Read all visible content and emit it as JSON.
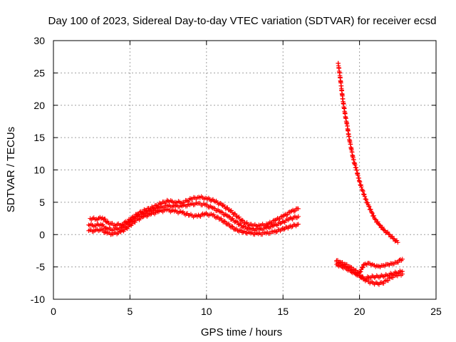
{
  "chart_data": {
    "type": "scatter",
    "title": "Day 100 of 2023, Sidereal Day-to-day VTEC variation (SDTVAR) for receiver ecsd",
    "xlabel": "GPS time / hours",
    "ylabel": "SDTVAR / TECUs",
    "xlim": [
      0,
      25
    ],
    "ylim": [
      -10,
      30
    ],
    "xticks": [
      0,
      5,
      10,
      15,
      20,
      25
    ],
    "yticks": [
      -10,
      -5,
      0,
      5,
      10,
      15,
      20,
      25,
      30
    ],
    "grid": true,
    "marker": "+",
    "color": "#ff0000",
    "series": [
      {
        "name": "arc-1-upper",
        "x": [
          2.4,
          2.8,
          3.2,
          3.6,
          4.0,
          4.5,
          5.0,
          5.5,
          6.0,
          6.5,
          7.0,
          7.5,
          8.0,
          8.5,
          9.0,
          9.5,
          10.0,
          10.5,
          11.0,
          11.5,
          12.0,
          12.5,
          13.0,
          13.5,
          14.0,
          14.5,
          15.0,
          15.5,
          16.0
        ],
        "y": [
          2.5,
          2.4,
          2.6,
          1.8,
          1.5,
          1.6,
          2.3,
          3.2,
          3.8,
          4.2,
          4.8,
          5.2,
          5.0,
          5.0,
          5.5,
          5.8,
          5.6,
          5.2,
          4.6,
          3.8,
          2.8,
          1.8,
          1.4,
          1.4,
          1.6,
          2.2,
          2.8,
          3.5,
          4.0
        ]
      },
      {
        "name": "arc-1-middle",
        "x": [
          2.3,
          2.7,
          3.1,
          3.5,
          3.9,
          4.4,
          4.9,
          5.4,
          5.9,
          6.4,
          6.9,
          7.4,
          7.9,
          8.4,
          8.9,
          9.4,
          9.9,
          10.4,
          10.9,
          11.4,
          11.9,
          12.4,
          12.9,
          13.4,
          13.9,
          14.4,
          14.9,
          15.4,
          16.0
        ],
        "y": [
          1.5,
          1.4,
          1.6,
          0.9,
          0.8,
          1.0,
          1.8,
          2.7,
          3.2,
          3.6,
          4.1,
          4.4,
          4.4,
          4.4,
          4.6,
          4.8,
          4.6,
          4.1,
          3.5,
          2.8,
          2.0,
          1.2,
          0.8,
          0.8,
          1.0,
          1.4,
          1.8,
          2.4,
          2.8
        ]
      },
      {
        "name": "arc-1-lower",
        "x": [
          2.3,
          2.7,
          3.1,
          3.5,
          3.9,
          4.4,
          4.9,
          5.4,
          5.9,
          6.4,
          6.9,
          7.4,
          7.9,
          8.4,
          8.9,
          9.4,
          9.9,
          10.4,
          10.9,
          11.4,
          11.9,
          12.4,
          12.9,
          13.4,
          13.9,
          14.4,
          14.9,
          15.4,
          16.0
        ],
        "y": [
          0.6,
          0.6,
          0.8,
          0.2,
          0.1,
          0.4,
          1.2,
          2.2,
          2.8,
          3.2,
          3.6,
          3.8,
          3.6,
          3.4,
          3.0,
          2.8,
          3.2,
          3.0,
          2.4,
          1.6,
          0.8,
          0.4,
          0.2,
          0.1,
          0.2,
          0.4,
          0.8,
          1.2,
          1.6
        ]
      },
      {
        "name": "arc-2-decay",
        "x": [
          18.6,
          18.7,
          18.8,
          18.9,
          19.0,
          19.1,
          19.2,
          19.3,
          19.4,
          19.5,
          19.6,
          19.8,
          20.0,
          20.2,
          20.4,
          20.6,
          20.8,
          21.0,
          21.3,
          21.6,
          21.9,
          22.2,
          22.5
        ],
        "y": [
          26.5,
          25.0,
          23.0,
          21.0,
          19.5,
          18.0,
          16.8,
          15.2,
          14.0,
          12.8,
          11.6,
          10.0,
          8.2,
          6.8,
          5.5,
          4.4,
          3.4,
          2.4,
          1.5,
          0.7,
          0.1,
          -0.6,
          -1.2
        ]
      },
      {
        "name": "arc-3-upper",
        "x": [
          18.5,
          18.8,
          19.1,
          19.4,
          19.7,
          20.0,
          20.3,
          20.6,
          20.9,
          21.2,
          21.5,
          21.8,
          22.1,
          22.4,
          22.8
        ],
        "y": [
          -4.0,
          -4.3,
          -4.6,
          -5.0,
          -5.5,
          -5.9,
          -4.6,
          -4.4,
          -4.7,
          -4.9,
          -4.8,
          -4.6,
          -4.5,
          -4.3,
          -3.8
        ]
      },
      {
        "name": "arc-3-middle",
        "x": [
          18.5,
          18.8,
          19.1,
          19.4,
          19.7,
          20.0,
          20.3,
          20.6,
          20.9,
          21.2,
          21.5,
          21.8,
          22.1,
          22.4,
          22.8
        ],
        "y": [
          -4.6,
          -4.9,
          -5.2,
          -5.6,
          -6.0,
          -6.4,
          -6.8,
          -6.6,
          -6.5,
          -6.5,
          -6.4,
          -6.3,
          -6.1,
          -5.9,
          -5.7
        ]
      },
      {
        "name": "arc-3-lower",
        "x": [
          18.5,
          18.8,
          19.1,
          19.4,
          19.7,
          20.0,
          20.3,
          20.6,
          20.9,
          21.2,
          21.5,
          21.8,
          22.1,
          22.4,
          22.8
        ],
        "y": [
          -4.2,
          -4.5,
          -4.9,
          -5.3,
          -5.8,
          -6.3,
          -6.9,
          -7.3,
          -7.5,
          -7.6,
          -7.5,
          -7.1,
          -6.6,
          -6.3,
          -6.1
        ]
      }
    ]
  }
}
